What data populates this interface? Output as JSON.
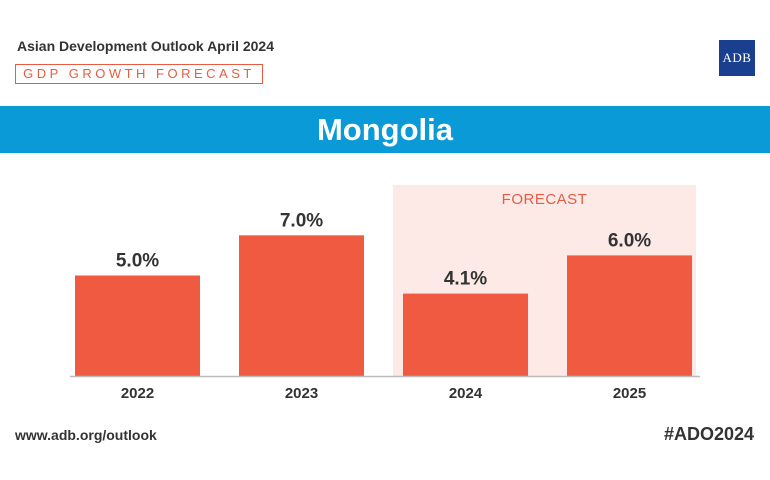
{
  "header": {
    "report_title": "Asian Development Outlook April 2024",
    "tag": "GDP GROWTH FORECAST",
    "logo_text": "ADB"
  },
  "banner": {
    "title": "Mongolia"
  },
  "colors": {
    "bar": "#f05a40",
    "forecast_band": "#fde9e6",
    "banner": "#0a9ad8",
    "accent": "#e85c45",
    "logo_bg": "#1a3f8f"
  },
  "chart_data": {
    "type": "bar",
    "categories": [
      "2022",
      "2023",
      "2024",
      "2025"
    ],
    "values": [
      5.0,
      7.0,
      4.1,
      6.0
    ],
    "value_labels": [
      "5.0%",
      "7.0%",
      "4.1%",
      "6.0%"
    ],
    "forecast_label": "FORECAST",
    "forecast_categories": [
      "2024",
      "2025"
    ],
    "ylim": [
      0,
      8
    ],
    "grid": false
  },
  "footer": {
    "url": "www.adb.org/outlook",
    "hashtag": "#ADO2024"
  }
}
